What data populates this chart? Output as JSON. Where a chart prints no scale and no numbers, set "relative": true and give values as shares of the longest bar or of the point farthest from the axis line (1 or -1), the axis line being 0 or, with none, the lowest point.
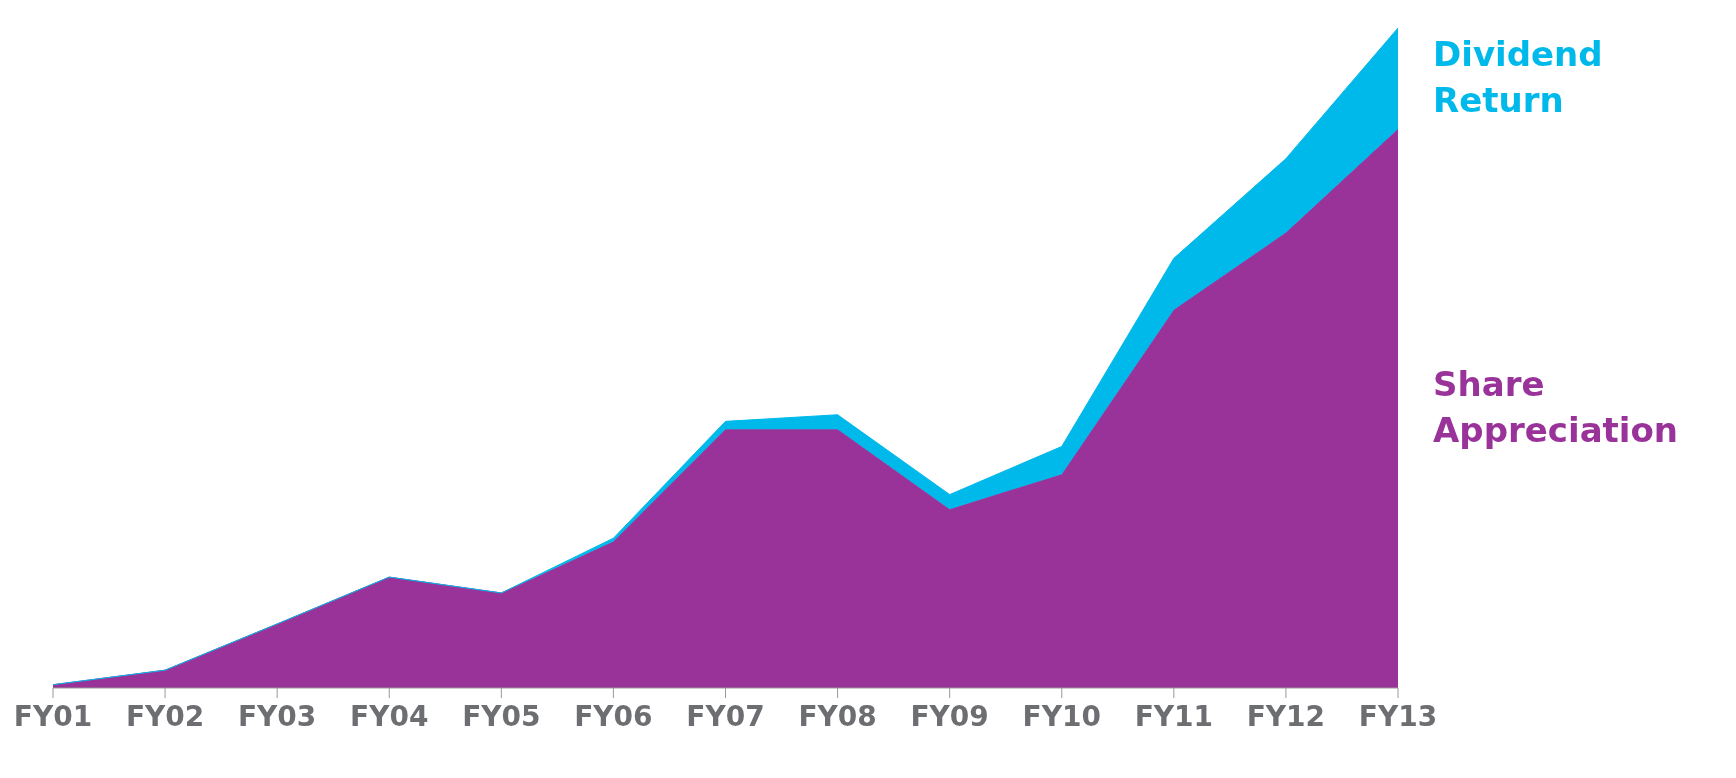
{
  "chart_data": {
    "type": "area",
    "stacked": true,
    "relative": true,
    "legend": "right",
    "grid": false,
    "categories": [
      "FY01",
      "FY02",
      "FY03",
      "FY04",
      "FY05",
      "FY06",
      "FY07",
      "FY08",
      "FY09",
      "FY10",
      "FY11",
      "FY12",
      "FY13"
    ],
    "series": [
      {
        "name": "Share Appreciation",
        "color": "#993399",
        "values": [
          0.005,
          0.027,
          0.097,
          0.168,
          0.144,
          0.222,
          0.392,
          0.392,
          0.271,
          0.324,
          0.573,
          0.69,
          0.847
        ]
      },
      {
        "name": "Dividend Return",
        "color": "#00b9eb",
        "values": [
          0,
          0,
          0,
          0,
          0,
          0.005,
          0.012,
          0.022,
          0.022,
          0.042,
          0.078,
          0.112,
          0.153
        ]
      }
    ]
  }
}
